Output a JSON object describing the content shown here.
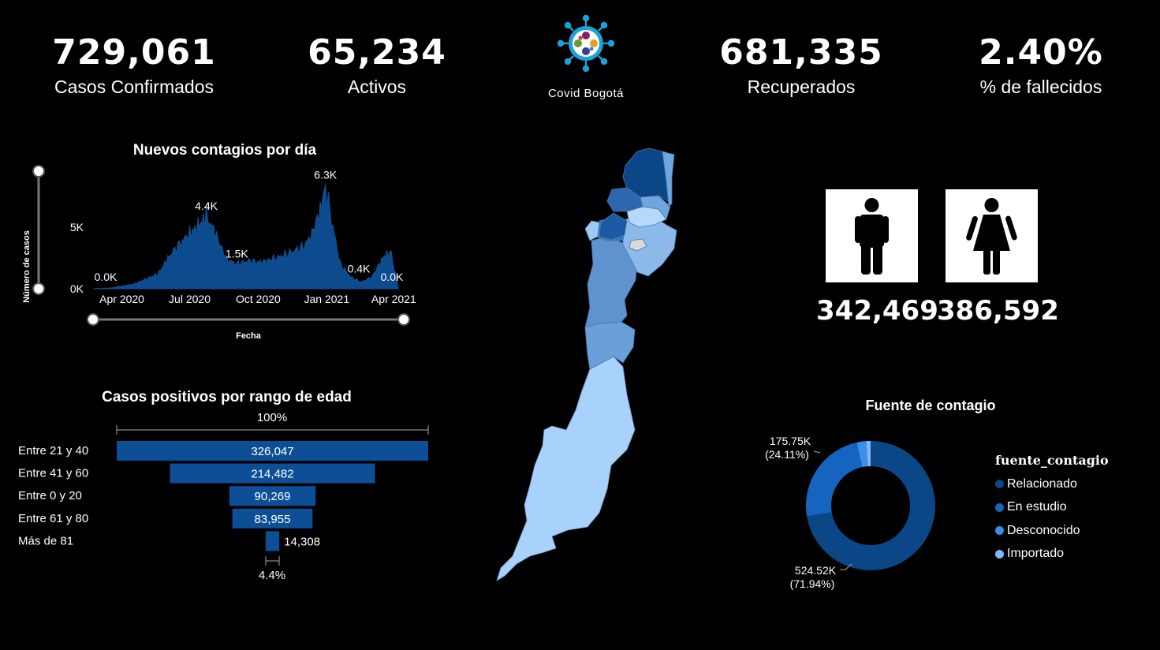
{
  "kpis": {
    "confirmed": {
      "value": "729,061",
      "label": "Casos Confirmados"
    },
    "active": {
      "value": "65,234",
      "label": "Activos"
    },
    "recovered": {
      "value": "681,335",
      "label": "Recuperados"
    },
    "deaths_pct": {
      "value": "2.40%",
      "label": "% de fallecidos"
    }
  },
  "logo": {
    "label": "Covid Bogotá",
    "icon": "virus-icon"
  },
  "gender": {
    "male": "342,469",
    "female": "386,592",
    "male_icon": "male-icon",
    "female_icon": "female-icon"
  },
  "colors": {
    "dark_blue": "#0c4b8e",
    "mid_blue": "#1a6fd0",
    "light_blue": "#9cc8ff",
    "bar_blue": "#0d4f97"
  },
  "chart_data": [
    {
      "type": "area",
      "title": "Nuevos contagios por día",
      "xlabel": "Fecha",
      "ylabel": "Número de casos",
      "y_ticks": [
        "0K",
        "5K"
      ],
      "ylim": [
        0,
        7000
      ],
      "x_ticks": [
        "Apr 2020",
        "Jul 2020",
        "Oct 2020",
        "Jan 2021",
        "Apr 2021"
      ],
      "x": [
        "2020-03-06",
        "2020-04-01",
        "2020-05-01",
        "2020-06-01",
        "2020-06-20",
        "2020-07-10",
        "2020-07-25",
        "2020-08-05",
        "2020-08-15",
        "2020-09-01",
        "2020-09-15",
        "2020-10-01",
        "2020-10-15",
        "2020-11-01",
        "2020-11-15",
        "2020-12-01",
        "2020-12-15",
        "2020-12-25",
        "2021-01-05",
        "2021-01-12",
        "2021-01-20",
        "2021-02-01",
        "2021-02-15",
        "2021-03-01",
        "2021-03-15",
        "2021-04-01",
        "2021-04-10",
        "2021-04-20"
      ],
      "values": [
        0,
        50,
        300,
        900,
        2200,
        3200,
        3800,
        4400,
        3600,
        1800,
        1500,
        1700,
        1600,
        1800,
        2000,
        2300,
        2600,
        3400,
        4800,
        6300,
        4200,
        1500,
        700,
        400,
        700,
        2000,
        2200,
        0
      ],
      "data_labels": [
        {
          "text": "0.0K",
          "x": "2020-03-06",
          "y": 0
        },
        {
          "text": "4.4K",
          "x": "2020-08-05",
          "y": 4400
        },
        {
          "text": "1.5K",
          "x": "2020-09-15",
          "y": 1500
        },
        {
          "text": "6.3K",
          "x": "2021-01-12",
          "y": 6300
        },
        {
          "text": "0.4K",
          "x": "2021-03-01",
          "y": 400
        },
        {
          "text": "0.0K",
          "x": "2021-04-20",
          "y": 0
        }
      ]
    },
    {
      "type": "bar",
      "title": "Casos positivos por rango de edad",
      "categories": [
        "Entre 21 y 40",
        "Entre 41 y 60",
        "Entre 0 y 20",
        "Entre 61 y 80",
        "Más de 81"
      ],
      "values": [
        326047,
        214482,
        90269,
        83955,
        14308
      ],
      "value_labels": [
        "326,047",
        "214,482",
        "90,269",
        "83,955",
        "14,308"
      ],
      "top_pct_label": "100%",
      "bottom_pct_label": "4.4%"
    },
    {
      "type": "pie",
      "title": "Fuente de contagio",
      "legend_title": "fuente_contagio",
      "legend_position": "right",
      "categories": [
        "Relacionado",
        "En estudio",
        "Desconocido",
        "Importado"
      ],
      "values": [
        524520,
        175750,
        17000,
        7800
      ],
      "colors": [
        "#0b4787",
        "#1565c0",
        "#3b8fe8",
        "#7fb8ff"
      ],
      "labels": [
        {
          "value": "524.52K",
          "pct": "(71.94%)"
        },
        {
          "value": "175.75K",
          "pct": "(24.11%)"
        }
      ]
    }
  ]
}
